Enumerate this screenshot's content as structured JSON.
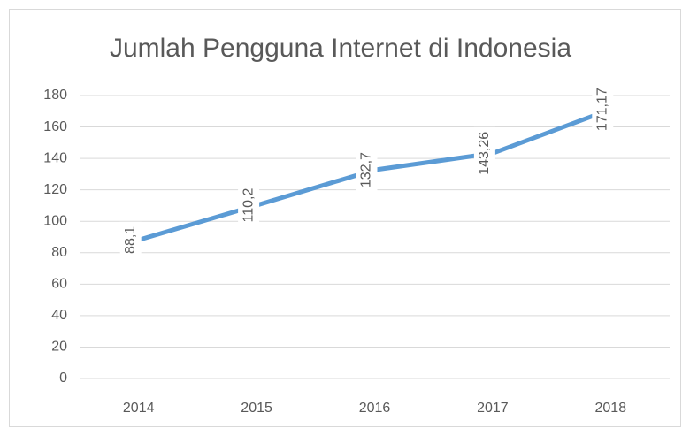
{
  "chart_data": {
    "type": "line",
    "title": "Jumlah Pengguna Internet di Indonesia",
    "categories": [
      "2014",
      "2015",
      "2016",
      "2017",
      "2018"
    ],
    "values": [
      88.1,
      110.2,
      132.7,
      143.26,
      171.17
    ],
    "value_labels": [
      "88,1",
      "110,2",
      "132,7",
      "143,26",
      "171,17"
    ],
    "color": "#5b9bd5",
    "ylim": [
      0,
      180
    ],
    "yticks": [
      0,
      20,
      40,
      60,
      80,
      100,
      120,
      140,
      160,
      180
    ],
    "grid": true
  }
}
